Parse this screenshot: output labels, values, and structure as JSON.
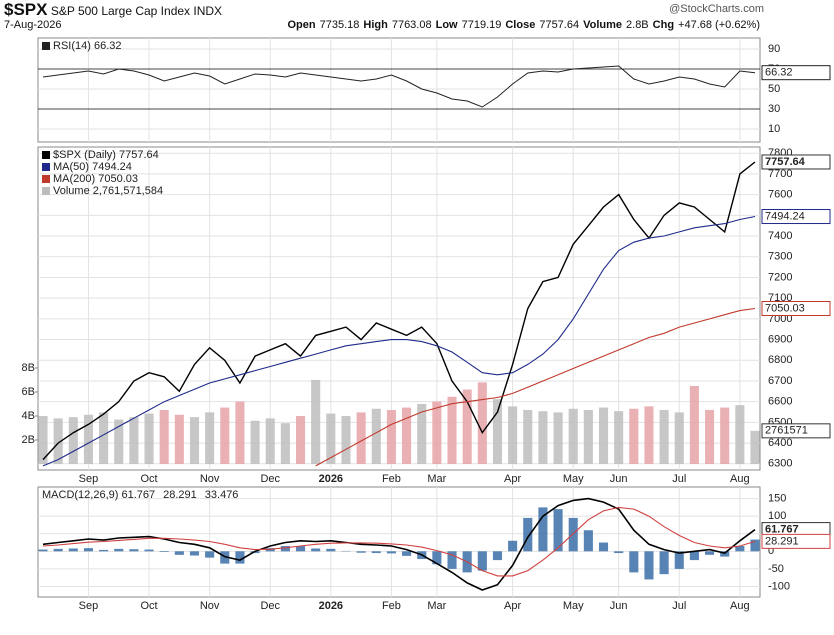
{
  "header": {
    "symbol": "$SPX",
    "name": "S&P 500 Large Cap Index INDX",
    "date": "7-Aug-2026",
    "brand": "@StockCharts.com",
    "stats": [
      {
        "label": "Open",
        "value": 7735.18
      },
      {
        "label": "High",
        "value": 7763.08
      },
      {
        "label": "Low",
        "value": 7719.19
      },
      {
        "label": "Close",
        "value": 7757.64
      },
      {
        "label": "Volume",
        "value": "2.8B"
      },
      {
        "label": "Chg",
        "value": "+47.68 (+0.62%)"
      }
    ]
  },
  "chart_data": [
    {
      "type": "line",
      "legend": "column",
      "levels": [
        30,
        70
      ],
      "ylim": [
        -3,
        101
      ],
      "yticks": [
        10,
        30,
        50,
        70,
        90
      ],
      "series": [
        {
          "name": "RSI(14) 66.32",
          "color": "#222222",
          "values": [
            62,
            64,
            66,
            68,
            65,
            70,
            68,
            64,
            58,
            62,
            66,
            63,
            55,
            60,
            65,
            64,
            62,
            66,
            64,
            62,
            60,
            58,
            60,
            64,
            58,
            50,
            46,
            40,
            38,
            32,
            42,
            55,
            66,
            68,
            67,
            70,
            71,
            72,
            73,
            60,
            55,
            58,
            62,
            60,
            55,
            52,
            68,
            66.32
          ]
        }
      ]
    },
    {
      "type": "line",
      "legend": "column",
      "ylim": [
        6270,
        7830
      ],
      "yticks": [
        6300,
        6400,
        6500,
        6600,
        6700,
        6800,
        6900,
        7000,
        7100,
        7200,
        7300,
        7400,
        7500,
        7600,
        7700,
        7800
      ],
      "y2lim": [
        -500000000,
        26400000000
      ],
      "y2ticks": [
        {
          "value": 2000000000,
          "label": "2B"
        },
        {
          "value": 4000000000,
          "label": "4B"
        },
        {
          "value": 6000000000,
          "label": "6B"
        },
        {
          "value": 8000000000,
          "label": "8B"
        }
      ],
      "categories": [
        null,
        null,
        null,
        "Sep",
        null,
        null,
        null,
        "Oct",
        null,
        null,
        null,
        "Nov",
        null,
        null,
        null,
        "Dec",
        null,
        null,
        null,
        "2026",
        null,
        null,
        null,
        "Feb",
        null,
        null,
        "Mar",
        null,
        null,
        null,
        null,
        "Apr",
        null,
        null,
        null,
        "May",
        null,
        null,
        "Jun",
        null,
        null,
        null,
        "Jul",
        null,
        null,
        null,
        "Aug",
        null
      ],
      "series": [
        {
          "name": "Volume 2,761,571,584",
          "color": "#bdbdbd",
          "down_color": "#e6a3a8",
          "axis": "y2",
          "type": "bar",
          "end_label": "2761571",
          "values": [
            4000000000,
            3800000000,
            3900000000,
            4100000000,
            4300000000,
            3700000000,
            3900000000,
            4200000000,
            4500000000,
            4100000000,
            3900000000,
            4300000000,
            4700000000,
            5200000000,
            3600000000,
            3800000000,
            3400000000,
            4000000000,
            7000000000,
            4200000000,
            4000000000,
            4300000000,
            4600000000,
            4500000000,
            4700000000,
            5000000000,
            5200000000,
            5600000000,
            6200000000,
            6800000000,
            5400000000,
            4800000000,
            4500000000,
            4400000000,
            4300000000,
            4600000000,
            4500000000,
            4700000000,
            4400000000,
            4600000000,
            4800000000,
            4500000000,
            4300000000,
            6500000000,
            4500000000,
            4700000000,
            4900000000,
            2761571584
          ]
        },
        {
          "name": "$SPX (Daily) 7757.64",
          "color": "#000000",
          "width": 1.4,
          "values": [
            6320,
            6400,
            6450,
            6490,
            6540,
            6600,
            6700,
            6740,
            6720,
            6650,
            6780,
            6860,
            6800,
            6690,
            6820,
            6850,
            6880,
            6820,
            6920,
            6940,
            6960,
            6900,
            6980,
            6950,
            6920,
            6960,
            6880,
            6700,
            6600,
            6450,
            6550,
            6780,
            7050,
            7180,
            7200,
            7360,
            7450,
            7540,
            7600,
            7480,
            7390,
            7500,
            7560,
            7540,
            7480,
            7420,
            7700,
            7757.64
          ]
        },
        {
          "name": "MA(50) 7494.24",
          "color": "#1f2a8a",
          "width": 1.1,
          "values": [
            6290,
            6320,
            6360,
            6400,
            6440,
            6480,
            6520,
            6560,
            6600,
            6630,
            6660,
            6690,
            6710,
            6730,
            6750,
            6770,
            6790,
            6810,
            6830,
            6850,
            6870,
            6880,
            6890,
            6900,
            6900,
            6890,
            6870,
            6840,
            6790,
            6740,
            6730,
            6740,
            6780,
            6830,
            6900,
            7000,
            7120,
            7240,
            7330,
            7370,
            7390,
            7400,
            7420,
            7440,
            7450,
            7460,
            7480,
            7494.24
          ]
        },
        {
          "name": "MA(200) 7050.03",
          "color": "#c0392b",
          "width": 1.1,
          "values": [
            null,
            null,
            null,
            null,
            null,
            null,
            null,
            null,
            null,
            null,
            null,
            null,
            null,
            null,
            null,
            null,
            null,
            null,
            6290,
            6330,
            6370,
            6410,
            6450,
            6490,
            6520,
            6550,
            6570,
            6590,
            6600,
            6610,
            6620,
            6640,
            6670,
            6700,
            6730,
            6760,
            6790,
            6820,
            6850,
            6880,
            6910,
            6930,
            6960,
            6980,
            7000,
            7020,
            7040,
            7050.03
          ]
        }
      ]
    },
    {
      "type": "macd",
      "legend": "row",
      "ylim": [
        -130,
        183
      ],
      "yticks": [
        -100,
        -50,
        0,
        50,
        100,
        150
      ],
      "categories": [
        null,
        null,
        null,
        "Sep",
        null,
        null,
        null,
        "Oct",
        null,
        null,
        null,
        "Nov",
        null,
        null,
        null,
        "Dec",
        null,
        null,
        null,
        "2026",
        null,
        null,
        null,
        "Feb",
        null,
        null,
        "Mar",
        null,
        null,
        null,
        null,
        "Apr",
        null,
        null,
        null,
        "May",
        null,
        null,
        "Jun",
        null,
        null,
        null,
        "Jul",
        null,
        null,
        null,
        "Aug",
        null
      ],
      "series": [
        {
          "name": "33.476",
          "color": "#3b6fa8",
          "type": "bar",
          "values": [
            5,
            7,
            8,
            9,
            4,
            7,
            6,
            5,
            -2,
            -10,
            -12,
            -18,
            -35,
            -35,
            -5,
            9,
            15,
            15,
            8,
            7,
            1,
            -4,
            -5,
            -6,
            -13,
            -22,
            -37,
            -50,
            -60,
            -55,
            -25,
            30,
            95,
            125,
            120,
            95,
            60,
            25,
            -5,
            -60,
            -80,
            -65,
            -50,
            -25,
            -10,
            -15,
            15,
            33.476
          ]
        },
        {
          "name": "MACD(12,26,9) 61.767",
          "color": "#000000",
          "width": 1.6,
          "values": [
            20,
            25,
            30,
            35,
            32,
            38,
            40,
            42,
            35,
            25,
            20,
            10,
            -15,
            -25,
            0,
            15,
            25,
            30,
            28,
            30,
            25,
            20,
            18,
            15,
            5,
            -10,
            -35,
            -60,
            -90,
            -110,
            -95,
            -40,
            40,
            100,
            130,
            145,
            150,
            140,
            120,
            60,
            20,
            5,
            -5,
            0,
            5,
            -5,
            30,
            61.767
          ]
        },
        {
          "name": "28.291",
          "color": "#d04040",
          "width": 1.1,
          "values": [
            15,
            18,
            22,
            26,
            28,
            31,
            34,
            37,
            37,
            35,
            32,
            28,
            20,
            10,
            5,
            6,
            10,
            15,
            20,
            23,
            24,
            24,
            23,
            21,
            18,
            12,
            2,
            -10,
            -30,
            -55,
            -70,
            -70,
            -55,
            -25,
            10,
            50,
            90,
            115,
            125,
            120,
            100,
            70,
            45,
            25,
            15,
            10,
            15,
            28.291
          ]
        }
      ]
    }
  ]
}
